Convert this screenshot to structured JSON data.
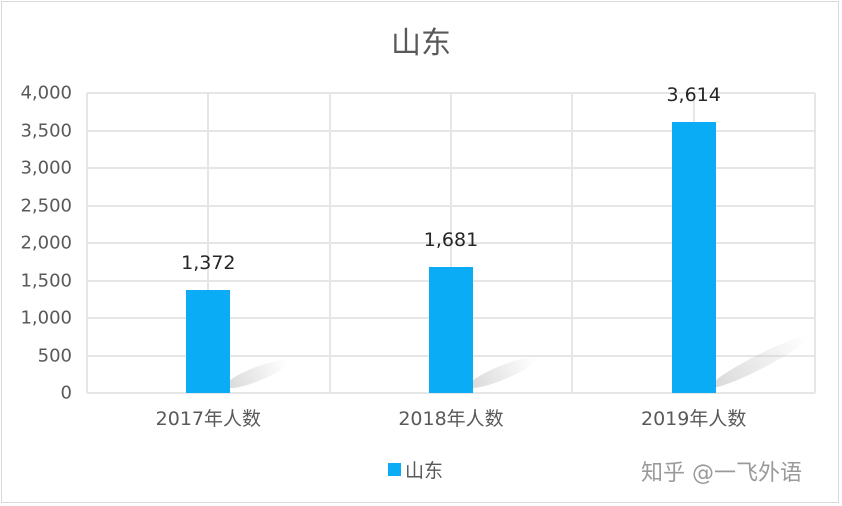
{
  "chart_data": {
    "type": "bar",
    "title": "山东",
    "categories": [
      "2017年人数",
      "2018年人数",
      "2019年人数"
    ],
    "series": [
      {
        "name": "山东",
        "values": [
          1372,
          1681,
          3614
        ],
        "color": "#0aacf6"
      }
    ],
    "data_labels": [
      "1,372",
      "1,681",
      "3,614"
    ],
    "xlabel": "",
    "ylabel": "",
    "ylim": [
      0,
      4000
    ],
    "yticks": [
      "0",
      "500",
      "1,000",
      "1,500",
      "2,000",
      "2,500",
      "3,000",
      "3,500",
      "4,000"
    ],
    "grid": true,
    "legend_position": "bottom"
  },
  "watermark": "知乎 @一飞外语"
}
